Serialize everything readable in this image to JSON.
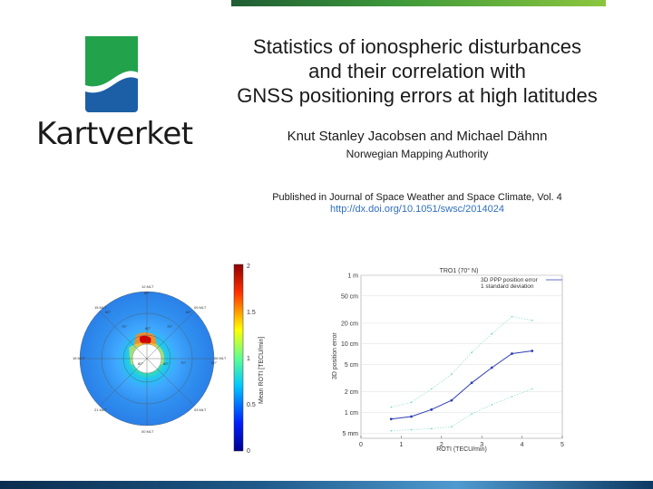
{
  "header": {
    "title_lines": [
      "Statistics of ionospheric disturbances",
      "and their correlation with",
      "GNSS positioning errors at high latitudes"
    ],
    "authors": "Knut Stanley Jacobsen and Michael Dähnn",
    "affiliation": "Norwegian Mapping Authority",
    "journal": "Published in Journal of Space Weather and Space Climate, Vol. 4",
    "doi": "http://dx.doi.org/10.1051/swsc/2014024"
  },
  "logo": {
    "text": "Kartverket",
    "colors": {
      "green": "#22a24a",
      "blue": "#1c5fa6"
    }
  },
  "colors": {
    "accent_green": "#3f9a3a",
    "accent_blue": "#1f5a8a",
    "link": "#2f6fbf"
  },
  "chart_data": [
    {
      "type": "heatmap",
      "subtype": "polar",
      "title": "",
      "mlt_labels": [
        "12 MLT",
        "15 MLT",
        "09 MLT",
        "18 MLT",
        "06 MLT",
        "21 MLT",
        "03 MLT",
        "00 MLT"
      ],
      "latitude_labels": [
        "60°",
        "60°",
        "60°",
        "60°",
        "70°",
        "70°",
        "70°",
        "80°",
        "80°",
        "80°"
      ],
      "colorbar": {
        "label": "Mean ROTI [TECU/min]",
        "ticks": [
          "2",
          "1.5",
          "1",
          "0.5",
          "0"
        ],
        "range": [
          0,
          2
        ]
      }
    },
    {
      "type": "line",
      "title": "TRO1 (70° N)",
      "xlabel": "ROTI (TECU/min)",
      "ylabel": "3D position error",
      "xlim": [
        0,
        5
      ],
      "x_ticks": [
        "0",
        "1",
        "2",
        "3",
        "4",
        "5"
      ],
      "y_scale": "log",
      "y_ticks": [
        {
          "label": "1 m",
          "value_mm": 1000
        },
        {
          "label": "50 cm",
          "value_mm": 500
        },
        {
          "label": "20 cm",
          "value_mm": 200
        },
        {
          "label": "10 cm",
          "value_mm": 100
        },
        {
          "label": "5 cm",
          "value_mm": 50
        },
        {
          "label": "2 cm",
          "value_mm": 20
        },
        {
          "label": "1 cm",
          "value_mm": 10
        },
        {
          "label": "5 mm",
          "value_mm": 5
        }
      ],
      "series": [
        {
          "name": "3D PPP position error",
          "color": "#2f3fb5",
          "x": [
            0.75,
            1.25,
            1.75,
            2.25,
            2.75,
            3.25,
            3.75,
            4.25
          ],
          "y_mm": [
            8,
            8.7,
            11,
            15,
            27,
            45,
            72,
            79
          ]
        },
        {
          "name": "1 standard deviation",
          "color": "#7fd9cc",
          "x": [
            0.75,
            1.25,
            1.75,
            2.25,
            2.75,
            3.25,
            3.75,
            4.25
          ],
          "y_mm": [
            12,
            14,
            22,
            36,
            75,
            140,
            250,
            220
          ]
        },
        {
          "color": "#7fd9cc",
          "x": [
            0.75,
            1.25,
            1.75,
            2.25,
            2.75,
            3.25,
            3.75,
            4.25
          ],
          "y_mm": [
            5.4,
            5.6,
            5.8,
            6.2,
            9.5,
            13,
            17,
            22
          ]
        }
      ]
    }
  ]
}
